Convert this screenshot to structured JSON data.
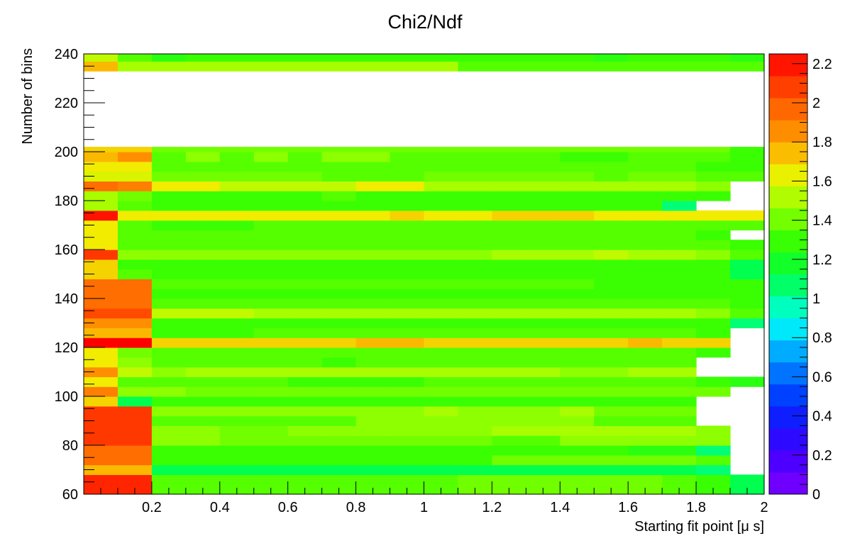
{
  "chart_data": {
    "type": "heatmap",
    "title": "Chi2/Ndf",
    "xlabel": "Starting fit point [μ s]",
    "ylabel": "Number of bins",
    "x_edges": [
      0.0,
      0.1,
      0.2,
      0.3,
      0.4,
      0.5,
      0.6,
      0.7,
      0.8,
      0.9,
      1.0,
      1.1,
      1.2,
      1.3,
      1.4,
      1.5,
      1.6,
      1.7,
      1.8,
      1.9,
      2.0
    ],
    "xlim": [
      0.0,
      2.0
    ],
    "ylim": [
      60,
      240
    ],
    "x_ticks": [
      "0.2",
      "0.4",
      "0.6",
      "0.8",
      "1",
      "1.2",
      "1.4",
      "1.6",
      "1.8",
      "2"
    ],
    "y_ticks": [
      "60",
      "80",
      "100",
      "120",
      "140",
      "160",
      "180",
      "200",
      "220",
      "240"
    ],
    "colorbar": {
      "min": 0,
      "max": 2.25,
      "ticks": [
        "0",
        "0.2",
        "0.4",
        "0.6",
        "0.8",
        "1",
        "1.2",
        "1.4",
        "1.6",
        "1.8",
        "2",
        "2.2"
      ]
    },
    "rows": [
      {
        "y": [
          60,
          64
        ],
        "values": [
          2.15,
          2.15,
          1.35,
          1.35,
          1.35,
          1.35,
          1.35,
          1.35,
          1.35,
          1.35,
          1.35,
          1.4,
          1.4,
          1.4,
          1.4,
          1.4,
          1.4,
          1.35,
          1.3,
          1.1
        ]
      },
      {
        "y": [
          64,
          68
        ],
        "values": [
          2.15,
          2.15,
          1.35,
          1.35,
          1.35,
          1.35,
          1.35,
          1.35,
          1.35,
          1.35,
          1.35,
          1.4,
          1.4,
          1.4,
          1.4,
          1.4,
          1.4,
          1.35,
          1.3,
          1.1
        ]
      },
      {
        "y": [
          68,
          72
        ],
        "values": [
          1.75,
          1.75,
          1.1,
          1.1,
          1.1,
          1.1,
          1.1,
          1.1,
          1.1,
          1.1,
          1.1,
          1.1,
          1.1,
          1.1,
          1.1,
          1.1,
          1.1,
          1.1,
          1.05,
          null
        ]
      },
      {
        "y": [
          72,
          76
        ],
        "values": [
          1.95,
          1.95,
          1.3,
          1.3,
          1.3,
          1.3,
          1.3,
          1.3,
          1.3,
          1.3,
          1.3,
          1.3,
          1.4,
          1.4,
          1.4,
          1.4,
          1.4,
          1.4,
          1.35,
          null
        ]
      },
      {
        "y": [
          76,
          80
        ],
        "values": [
          1.95,
          1.95,
          1.3,
          1.3,
          1.3,
          1.3,
          1.3,
          1.3,
          1.3,
          1.3,
          1.3,
          1.3,
          1.3,
          1.3,
          1.3,
          1.3,
          1.25,
          1.25,
          1.05,
          null
        ]
      },
      {
        "y": [
          80,
          84
        ],
        "values": [
          2.1,
          2.1,
          1.45,
          1.45,
          1.4,
          1.4,
          1.4,
          1.4,
          1.4,
          1.4,
          1.4,
          1.4,
          1.35,
          1.35,
          1.45,
          1.45,
          1.45,
          1.45,
          1.45,
          null
        ]
      },
      {
        "y": [
          84,
          88
        ],
        "values": [
          2.1,
          2.1,
          1.45,
          1.45,
          1.4,
          1.4,
          1.45,
          1.45,
          1.45,
          1.45,
          1.45,
          1.45,
          1.5,
          1.5,
          1.5,
          1.5,
          1.5,
          1.5,
          1.45,
          null
        ]
      },
      {
        "y": [
          88,
          92
        ],
        "values": [
          2.1,
          2.1,
          1.35,
          1.35,
          1.35,
          1.35,
          1.35,
          1.35,
          1.45,
          1.45,
          1.45,
          1.45,
          1.45,
          1.45,
          1.45,
          1.35,
          1.35,
          1.35,
          null,
          null
        ]
      },
      {
        "y": [
          92,
          96
        ],
        "values": [
          2.1,
          2.1,
          1.45,
          1.45,
          1.45,
          1.45,
          1.45,
          1.45,
          1.45,
          1.45,
          1.5,
          1.45,
          1.45,
          1.45,
          1.5,
          1.4,
          1.4,
          1.4,
          null,
          null
        ]
      },
      {
        "y": [
          96,
          100
        ],
        "values": [
          1.7,
          1.1,
          1.3,
          1.3,
          1.3,
          1.3,
          1.3,
          1.3,
          1.3,
          1.3,
          1.3,
          1.3,
          1.3,
          1.3,
          1.3,
          1.3,
          1.3,
          1.3,
          null,
          null
        ]
      },
      {
        "y": [
          100,
          104
        ],
        "values": [
          1.9,
          1.45,
          1.45,
          1.4,
          1.4,
          1.4,
          1.4,
          1.4,
          1.4,
          1.4,
          1.4,
          1.4,
          1.4,
          1.4,
          1.4,
          1.4,
          1.4,
          1.4,
          1.4,
          null
        ]
      },
      {
        "y": [
          104,
          108
        ],
        "values": [
          1.65,
          1.35,
          1.35,
          1.35,
          1.35,
          1.35,
          1.3,
          1.3,
          1.3,
          1.3,
          1.35,
          1.35,
          1.35,
          1.35,
          1.35,
          1.35,
          1.35,
          1.35,
          1.3,
          1.25
        ]
      },
      {
        "y": [
          108,
          112
        ],
        "values": [
          1.85,
          1.55,
          1.45,
          1.5,
          1.5,
          1.5,
          1.5,
          1.5,
          1.5,
          1.5,
          1.5,
          1.5,
          1.5,
          1.5,
          1.45,
          1.45,
          1.5,
          1.5,
          null,
          null
        ]
      },
      {
        "y": [
          112,
          116
        ],
        "values": [
          1.65,
          1.45,
          1.35,
          1.35,
          1.35,
          1.35,
          1.35,
          1.3,
          1.35,
          1.35,
          1.35,
          1.35,
          1.35,
          1.35,
          1.35,
          1.35,
          1.35,
          1.35,
          null,
          null
        ]
      },
      {
        "y": [
          116,
          120
        ],
        "values": [
          1.65,
          1.4,
          1.35,
          1.35,
          1.35,
          1.35,
          1.35,
          1.35,
          1.35,
          1.35,
          1.35,
          1.35,
          1.35,
          1.35,
          1.35,
          1.35,
          1.35,
          1.35,
          1.3,
          null
        ]
      },
      {
        "y": [
          120,
          124
        ],
        "values": [
          2.25,
          2.25,
          1.7,
          1.7,
          1.7,
          1.7,
          1.7,
          1.7,
          1.75,
          1.75,
          1.7,
          1.7,
          1.7,
          1.7,
          1.7,
          1.7,
          1.75,
          1.7,
          1.7,
          null
        ]
      },
      {
        "y": [
          124,
          128
        ],
        "values": [
          1.75,
          1.75,
          1.3,
          1.3,
          1.3,
          1.35,
          1.35,
          1.35,
          1.35,
          1.35,
          1.35,
          1.35,
          1.35,
          1.35,
          1.35,
          1.35,
          1.35,
          1.35,
          1.3,
          null
        ]
      },
      {
        "y": [
          128,
          132
        ],
        "values": [
          1.85,
          1.85,
          1.3,
          1.3,
          1.3,
          1.3,
          1.3,
          1.3,
          1.3,
          1.3,
          1.3,
          1.3,
          1.3,
          1.3,
          1.3,
          1.3,
          1.3,
          1.3,
          1.3,
          1.05
        ]
      },
      {
        "y": [
          132,
          136
        ],
        "values": [
          2.05,
          2.05,
          1.55,
          1.55,
          1.55,
          1.5,
          1.5,
          1.5,
          1.5,
          1.5,
          1.5,
          1.5,
          1.5,
          1.5,
          1.5,
          1.5,
          1.5,
          1.5,
          1.45,
          1.35
        ]
      },
      {
        "y": [
          136,
          140
        ],
        "values": [
          1.95,
          1.95,
          1.35,
          1.35,
          1.35,
          1.35,
          1.35,
          1.35,
          1.35,
          1.35,
          1.35,
          1.35,
          1.35,
          1.35,
          1.35,
          1.35,
          1.35,
          1.35,
          1.35,
          1.3
        ]
      },
      {
        "y": [
          140,
          144
        ],
        "values": [
          1.95,
          1.95,
          1.3,
          1.3,
          1.3,
          1.3,
          1.3,
          1.3,
          1.3,
          1.3,
          1.3,
          1.3,
          1.3,
          1.3,
          1.3,
          1.3,
          1.3,
          1.3,
          1.3,
          1.3
        ]
      },
      {
        "y": [
          144,
          148
        ],
        "values": [
          1.95,
          1.95,
          1.35,
          1.35,
          1.35,
          1.35,
          1.35,
          1.35,
          1.35,
          1.35,
          1.35,
          1.35,
          1.35,
          1.35,
          1.35,
          1.3,
          1.3,
          1.3,
          1.3,
          1.3
        ]
      },
      {
        "y": [
          148,
          152
        ],
        "values": [
          1.7,
          1.35,
          1.3,
          1.3,
          1.3,
          1.3,
          1.3,
          1.3,
          1.3,
          1.3,
          1.3,
          1.3,
          1.3,
          1.3,
          1.3,
          1.3,
          1.3,
          1.3,
          1.3,
          1.1
        ]
      },
      {
        "y": [
          152,
          156
        ],
        "values": [
          1.7,
          1.3,
          1.3,
          1.3,
          1.3,
          1.3,
          1.3,
          1.3,
          1.3,
          1.3,
          1.3,
          1.3,
          1.3,
          1.3,
          1.3,
          1.3,
          1.3,
          1.3,
          1.3,
          1.1
        ]
      },
      {
        "y": [
          156,
          160
        ],
        "values": [
          2.1,
          1.45,
          1.45,
          1.45,
          1.45,
          1.45,
          1.45,
          1.45,
          1.45,
          1.45,
          1.45,
          1.45,
          1.5,
          1.5,
          1.5,
          1.55,
          1.5,
          1.5,
          1.45,
          1.35
        ]
      },
      {
        "y": [
          160,
          164
        ],
        "values": [
          1.65,
          1.35,
          1.35,
          1.35,
          1.35,
          1.35,
          1.35,
          1.35,
          1.35,
          1.35,
          1.35,
          1.35,
          1.35,
          1.35,
          1.35,
          1.35,
          1.35,
          1.35,
          1.35,
          1.3
        ]
      },
      {
        "y": [
          164,
          168
        ],
        "values": [
          1.65,
          1.35,
          1.35,
          1.35,
          1.35,
          1.35,
          1.35,
          1.35,
          1.35,
          1.35,
          1.35,
          1.35,
          1.35,
          1.35,
          1.35,
          1.35,
          1.35,
          1.35,
          1.3,
          null
        ]
      },
      {
        "y": [
          168,
          172
        ],
        "values": [
          1.65,
          1.35,
          1.3,
          1.3,
          1.3,
          1.35,
          1.35,
          1.35,
          1.35,
          1.35,
          1.35,
          1.35,
          1.35,
          1.35,
          1.35,
          1.35,
          1.35,
          1.35,
          1.35,
          1.35
        ]
      },
      {
        "y": [
          172,
          176
        ],
        "values": [
          2.2,
          1.65,
          1.65,
          1.65,
          1.65,
          1.65,
          1.65,
          1.65,
          1.65,
          1.7,
          1.65,
          1.65,
          1.7,
          1.7,
          1.7,
          1.65,
          1.65,
          1.65,
          1.65,
          1.65
        ]
      },
      {
        "y": [
          176,
          180
        ],
        "values": [
          1.5,
          1.35,
          1.3,
          1.3,
          1.3,
          1.3,
          1.3,
          1.3,
          1.3,
          1.3,
          1.3,
          1.3,
          1.3,
          1.3,
          1.3,
          1.3,
          1.3,
          1.05,
          null,
          null
        ]
      },
      {
        "y": [
          180,
          184
        ],
        "values": [
          1.5,
          1.4,
          1.3,
          1.3,
          1.3,
          1.3,
          1.3,
          1.35,
          1.3,
          1.3,
          1.3,
          1.3,
          1.3,
          1.3,
          1.3,
          1.3,
          1.3,
          1.3,
          1.3,
          null
        ]
      },
      {
        "y": [
          184,
          188
        ],
        "values": [
          1.95,
          1.9,
          1.65,
          1.65,
          1.55,
          1.55,
          1.55,
          1.55,
          1.65,
          1.65,
          1.5,
          1.5,
          1.5,
          1.5,
          1.5,
          1.5,
          1.5,
          1.5,
          1.45,
          null
        ]
      },
      {
        "y": [
          188,
          192
        ],
        "values": [
          1.6,
          1.6,
          1.4,
          1.4,
          1.4,
          1.4,
          1.4,
          1.35,
          1.35,
          1.35,
          1.4,
          1.4,
          1.4,
          1.4,
          1.4,
          1.35,
          1.4,
          1.4,
          1.35,
          1.35
        ]
      },
      {
        "y": [
          192,
          196
        ],
        "values": [
          1.65,
          1.65,
          1.35,
          1.35,
          1.35,
          1.35,
          1.35,
          1.35,
          1.35,
          1.35,
          1.35,
          1.35,
          1.35,
          1.35,
          1.35,
          1.35,
          1.35,
          1.35,
          1.3,
          1.3
        ]
      },
      {
        "y": [
          196,
          200
        ],
        "values": [
          1.75,
          1.85,
          1.35,
          1.45,
          1.35,
          1.45,
          1.35,
          1.45,
          1.45,
          1.35,
          1.35,
          1.35,
          1.35,
          1.35,
          1.3,
          1.3,
          1.35,
          1.35,
          1.35,
          1.3
        ]
      },
      {
        "y": [
          200,
          202
        ],
        "values": [
          1.7,
          1.7,
          1.4,
          1.4,
          1.4,
          1.4,
          1.4,
          1.4,
          1.4,
          1.4,
          1.4,
          1.4,
          1.4,
          1.4,
          1.4,
          1.4,
          1.4,
          1.4,
          1.4,
          1.3
        ]
      },
      {
        "y": [
          233,
          237
        ],
        "values": [
          1.75,
          1.5,
          1.5,
          1.5,
          1.5,
          1.5,
          1.5,
          1.5,
          1.5,
          1.5,
          1.5,
          1.35,
          1.35,
          1.35,
          1.35,
          1.35,
          1.35,
          1.35,
          1.35,
          1.35
        ]
      },
      {
        "y": [
          237,
          240
        ],
        "values": [
          1.55,
          1.35,
          1.25,
          1.3,
          1.3,
          1.3,
          1.3,
          1.3,
          1.3,
          1.3,
          1.3,
          1.3,
          1.3,
          1.3,
          1.3,
          1.25,
          1.3,
          1.3,
          1.3,
          1.25
        ]
      }
    ]
  }
}
